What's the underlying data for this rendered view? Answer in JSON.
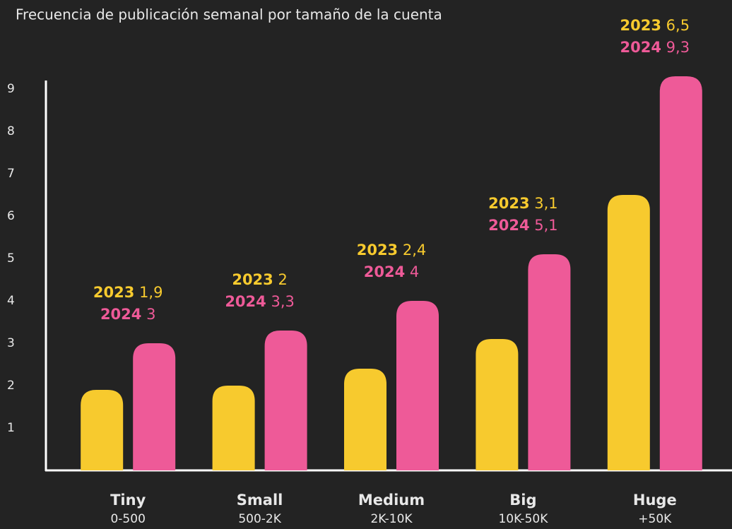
{
  "chart_data": {
    "type": "bar",
    "title": "Frecuencia de publicación semanal por tamaño de la cuenta",
    "categories": [
      "Tiny",
      "Small",
      "Medium",
      "Big",
      "Huge"
    ],
    "subcategories": [
      "0-500",
      "500-2K",
      "2K-10K",
      "10K-50K",
      "+50K"
    ],
    "series": [
      {
        "name": "2023",
        "color": "#f7ca2e",
        "values": [
          1.9,
          2,
          2.4,
          3.1,
          6.5
        ],
        "value_labels": [
          "1,9",
          "2",
          "2,4",
          "3,1",
          "6,5"
        ]
      },
      {
        "name": "2024",
        "color": "#ee5a98",
        "values": [
          3,
          3.3,
          4,
          5.1,
          9.3
        ],
        "value_labels": [
          "3",
          "3,3",
          "4",
          "5,1",
          "9,3"
        ]
      }
    ],
    "ylim": [
      0,
      9.2
    ],
    "yticks": [
      1,
      2,
      3,
      4,
      5,
      6,
      7,
      8,
      9
    ],
    "grid": false
  }
}
